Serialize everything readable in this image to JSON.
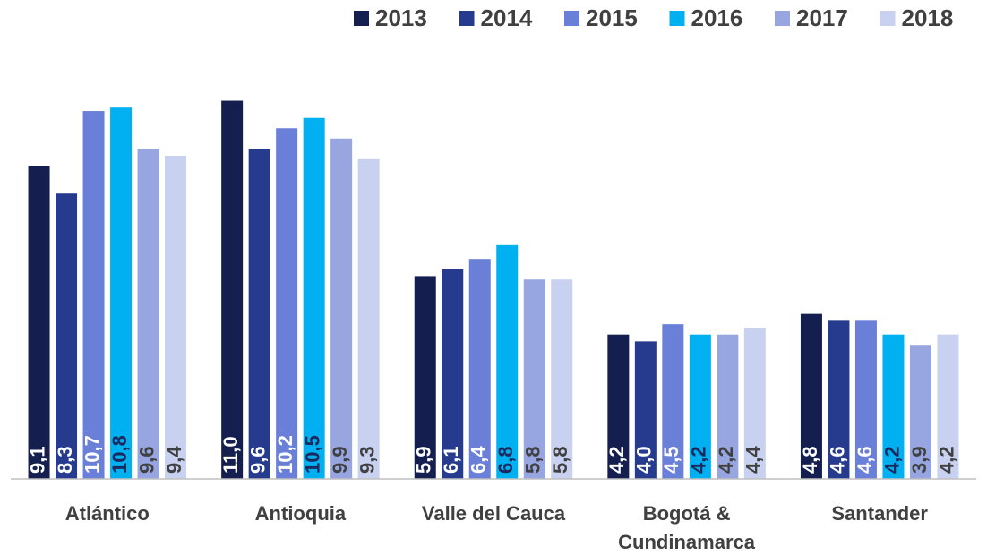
{
  "chart_data": {
    "type": "bar",
    "categories": [
      "Atlántico",
      "Antioquia",
      "Valle del Cauca",
      "Bogotá & Cundinamarca",
      "Santander"
    ],
    "ylim": [
      0,
      11.3
    ],
    "legend": "top-right",
    "series": [
      {
        "name": "2013",
        "color": "#141f4f",
        "label_color": "#ffffff",
        "values": [
          9.1,
          11.0,
          5.9,
          4.2,
          4.8
        ],
        "value_labels": [
          "9,1",
          "11,0",
          "5,9",
          "4,2",
          "4,8"
        ]
      },
      {
        "name": "2014",
        "color": "#263b8e",
        "label_color": "#ffffff",
        "values": [
          8.3,
          9.6,
          6.1,
          4.0,
          4.6
        ],
        "value_labels": [
          "8,3",
          "9,6",
          "6,1",
          "4,0",
          "4,6"
        ]
      },
      {
        "name": "2015",
        "color": "#6a7fd8",
        "label_color": "#ffffff",
        "values": [
          10.7,
          10.2,
          6.4,
          4.5,
          4.6
        ],
        "value_labels": [
          "10,7",
          "10,2",
          "6,4",
          "4,5",
          "4,6"
        ]
      },
      {
        "name": "2016",
        "color": "#00b0f0",
        "label_color": "#1b2a5e",
        "values": [
          10.8,
          10.5,
          6.8,
          4.2,
          4.2
        ],
        "value_labels": [
          "10,8",
          "10,5",
          "6,8",
          "4,2",
          "4,2"
        ]
      },
      {
        "name": "2017",
        "color": "#97a6e0",
        "label_color": "#404040",
        "values": [
          9.6,
          9.9,
          5.8,
          4.2,
          3.9
        ],
        "value_labels": [
          "9,6",
          "9,9",
          "5,8",
          "4,2",
          "3,9"
        ]
      },
      {
        "name": "2018",
        "color": "#c9d1f0",
        "label_color": "#404040",
        "values": [
          9.4,
          9.3,
          5.8,
          4.4,
          4.2
        ],
        "value_labels": [
          "9,4",
          "9,3",
          "5,8",
          "4,4",
          "4,2"
        ]
      }
    ]
  }
}
